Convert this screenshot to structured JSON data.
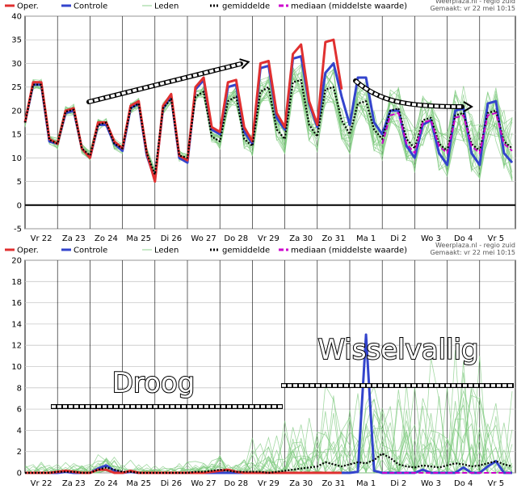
{
  "chart_data": [
    {
      "type": "line",
      "legend": [
        {
          "key": "oper",
          "label": "Oper.",
          "color": "#e03030"
        },
        {
          "key": "controle",
          "label": "Controle",
          "color": "#3344cc"
        },
        {
          "key": "leden",
          "label": "Leden",
          "color": "#8fd08f"
        },
        {
          "key": "gemiddelde",
          "label": "gemiddelde",
          "color": "#000000"
        },
        {
          "key": "mediaan",
          "label": "mediaan (middelste waarde)",
          "color": "#cc00cc"
        }
      ],
      "credit_line1": "Weerplaza.nl - regio zuid",
      "credit_line2": "Gemaakt: vr 22 mei 10:15",
      "ylim": [
        -5,
        40
      ],
      "yticks": [
        -5,
        0,
        5,
        10,
        15,
        20,
        25,
        30,
        35,
        40
      ],
      "xlim": [
        0,
        15.1
      ],
      "x_labels": [
        "Vr 22",
        "Za 23",
        "Zo 24",
        "Ma 25",
        "Di 26",
        "Wo 27",
        "Do 28",
        "Vr 29",
        "Za 30",
        "Zo 31",
        "Ma 1",
        "Di 2",
        "Wo 3",
        "Do 4",
        "Vr 5"
      ],
      "x": [
        0,
        0.25,
        0.5,
        0.75,
        1,
        1.25,
        1.5,
        1.75,
        2,
        2.25,
        2.5,
        2.75,
        3,
        3.25,
        3.5,
        3.75,
        4,
        4.25,
        4.5,
        4.75,
        5,
        5.25,
        5.5,
        5.75,
        6,
        6.25,
        6.5,
        6.75,
        7,
        7.25,
        7.5,
        7.75,
        8,
        8.25,
        8.5,
        8.75,
        9,
        9.25,
        9.5,
        9.75,
        10,
        10.25,
        10.5,
        10.75,
        11,
        11.25,
        11.5,
        11.75,
        12,
        12.25,
        12.5,
        12.75,
        13,
        13.25,
        13.5,
        13.75,
        14,
        14.25,
        14.5,
        14.75,
        15
      ],
      "series": [
        {
          "name": "Oper.",
          "values": [
            17.5,
            26,
            26,
            14,
            13,
            20,
            20.5,
            12,
            10,
            17.5,
            17.5,
            13.5,
            12,
            21,
            22,
            11,
            5,
            21,
            23.5,
            10.5,
            9.5,
            25,
            27,
            16.5,
            15.5,
            26,
            26.5,
            16.5,
            13.5,
            30,
            30.5,
            19.5,
            16.5,
            32,
            34,
            22,
            17,
            34.5,
            35,
            24.5,
            null,
            null,
            null,
            null,
            null,
            null,
            null,
            null,
            null,
            null,
            null,
            null,
            null,
            null,
            null,
            null,
            null,
            null,
            null,
            null,
            null
          ]
        },
        {
          "name": "Controle",
          "values": [
            17.5,
            25.5,
            25.5,
            13.5,
            13,
            19.5,
            20,
            12,
            10,
            17,
            17,
            13,
            11.5,
            20.5,
            21.5,
            10.5,
            5.5,
            20.5,
            23,
            10,
            9,
            24.5,
            26.5,
            16,
            15,
            25,
            25.5,
            15.5,
            13,
            29,
            29.5,
            18.5,
            16,
            31,
            31.5,
            21.5,
            16.5,
            28,
            30,
            23,
            17,
            27,
            27,
            17.5,
            15,
            20,
            20,
            12.5,
            10,
            17,
            18,
            11,
            8.5,
            20,
            20.5,
            11,
            8.5,
            21.5,
            22,
            11,
            9
          ]
        },
        {
          "name": "gemiddelde",
          "values": [
            17.5,
            25.5,
            25.5,
            13.8,
            13,
            19.8,
            20.2,
            12,
            10.5,
            17,
            17.5,
            13,
            12,
            20.5,
            21.5,
            11,
            6.5,
            20.5,
            22.5,
            10.5,
            10,
            23,
            24,
            14.5,
            13.5,
            22,
            23,
            14,
            12.5,
            24,
            25,
            16,
            14,
            26,
            26.5,
            17,
            14.5,
            24.5,
            25,
            18,
            15,
            21.5,
            22,
            16,
            14,
            20,
            20.5,
            14,
            12,
            18,
            18.5,
            13,
            11.5,
            19,
            19.5,
            13,
            11.5,
            19.5,
            20,
            13.5,
            12
          ]
        },
        {
          "name": "mediaan (middelste waarde)",
          "values": [
            null,
            null,
            null,
            null,
            null,
            null,
            null,
            null,
            null,
            null,
            null,
            null,
            null,
            null,
            null,
            null,
            null,
            null,
            null,
            null,
            null,
            null,
            null,
            null,
            null,
            null,
            null,
            null,
            null,
            null,
            null,
            null,
            null,
            null,
            null,
            null,
            null,
            null,
            null,
            null,
            null,
            null,
            null,
            null,
            13,
            19,
            19.5,
            13,
            11,
            17.5,
            18,
            12.5,
            11,
            18.5,
            19,
            12.5,
            11,
            19,
            19.5,
            13,
            11.5
          ]
        }
      ],
      "annotations": []
    },
    {
      "type": "line",
      "legend": [
        {
          "key": "oper",
          "label": "Oper.",
          "color": "#e03030"
        },
        {
          "key": "controle",
          "label": "Controle",
          "color": "#3344cc"
        },
        {
          "key": "leden",
          "label": "Leden",
          "color": "#8fd08f"
        },
        {
          "key": "gemiddelde",
          "label": "gemiddelde",
          "color": "#000000"
        },
        {
          "key": "mediaan",
          "label": "mediaan (middelste waarde)",
          "color": "#cc00cc"
        }
      ],
      "credit_line1": "Weerplaza.nl - regio zuid",
      "credit_line2": "Gemaakt: vr 22 mei 10:15",
      "ylim": [
        0,
        20
      ],
      "yticks": [
        0,
        2,
        4,
        6,
        8,
        10,
        12,
        14,
        16,
        18,
        20
      ],
      "xlim": [
        0,
        15.1
      ],
      "x_labels": [
        "Vr 22",
        "Za 23",
        "Zo 24",
        "Ma 25",
        "Di 26",
        "Wo 27",
        "Do 28",
        "Vr 29",
        "Za 30",
        "Zo 31",
        "Ma 1",
        "Di 2",
        "Wo 3",
        "Do 4",
        "Vr 5"
      ],
      "x": [
        0,
        0.25,
        0.5,
        0.75,
        1,
        1.25,
        1.5,
        1.75,
        2,
        2.25,
        2.5,
        2.75,
        3,
        3.25,
        3.5,
        3.75,
        4,
        4.25,
        4.5,
        4.75,
        5,
        5.25,
        5.5,
        5.75,
        6,
        6.25,
        6.5,
        6.75,
        7,
        7.25,
        7.5,
        7.75,
        8,
        8.25,
        8.5,
        8.75,
        9,
        9.25,
        9.5,
        9.75,
        10,
        10.25,
        10.5,
        10.75,
        11,
        11.25,
        11.5,
        11.75,
        12,
        12.25,
        12.5,
        12.75,
        13,
        13.25,
        13.5,
        13.75,
        14,
        14.25,
        14.5,
        14.75,
        15
      ],
      "series": [
        {
          "name": "Oper.",
          "values": [
            0,
            0,
            0,
            0,
            0.1,
            0.2,
            0.1,
            0,
            0,
            0.3,
            0.3,
            0,
            0,
            0.2,
            0,
            0,
            0,
            0,
            0,
            0,
            0,
            0,
            0,
            0.1,
            0.2,
            0.3,
            0.1,
            0,
            0,
            0,
            0,
            0,
            0,
            0,
            0,
            0,
            0,
            0,
            0,
            0,
            null,
            null,
            null,
            null,
            null,
            null,
            null,
            null,
            null,
            null,
            null,
            null,
            null,
            null,
            null,
            null,
            null,
            null,
            null,
            null,
            null
          ]
        },
        {
          "name": "Controle",
          "values": [
            0,
            0,
            0,
            0,
            0,
            0.1,
            0,
            0,
            0,
            0.4,
            0.7,
            0.2,
            0,
            0.1,
            0,
            0,
            0,
            0,
            0,
            0,
            0,
            0,
            0,
            0,
            0,
            0,
            0,
            0,
            0,
            0,
            0,
            0,
            0,
            0,
            0,
            0,
            0,
            0,
            0,
            0,
            0,
            0.1,
            13,
            0.2,
            0,
            0,
            0,
            0,
            0,
            0.3,
            0,
            0,
            0,
            0,
            0.5,
            0,
            0,
            0.6,
            1.1,
            0,
            0
          ]
        },
        {
          "name": "gemiddelde",
          "values": [
            0,
            0,
            0,
            0,
            0.1,
            0.1,
            0.1,
            0,
            0,
            0.3,
            0.5,
            0.3,
            0.1,
            0.1,
            0,
            0,
            0,
            0,
            0,
            0,
            0,
            0.1,
            0.1,
            0.2,
            0.3,
            0.2,
            0.1,
            0.1,
            0.1,
            0.1,
            0,
            0.1,
            0.2,
            0.3,
            0.4,
            0.5,
            0.6,
            1,
            0.8,
            0.6,
            0.8,
            1,
            0.9,
            1.2,
            1.8,
            1.4,
            0.8,
            0.6,
            0.5,
            0.7,
            0.6,
            0.5,
            0.7,
            0.9,
            0.8,
            0.6,
            0.7,
            0.9,
            1.1,
            0.8,
            0.6
          ]
        },
        {
          "name": "mediaan (middelste waarde)",
          "values": [
            null,
            null,
            null,
            null,
            null,
            null,
            null,
            null,
            null,
            null,
            null,
            null,
            null,
            null,
            null,
            null,
            null,
            null,
            null,
            null,
            null,
            null,
            null,
            null,
            null,
            null,
            null,
            null,
            null,
            null,
            null,
            null,
            null,
            null,
            null,
            null,
            null,
            null,
            null,
            null,
            null,
            null,
            null,
            null,
            0,
            0,
            0,
            0,
            0,
            0,
            0,
            0,
            0,
            0,
            0,
            0,
            0,
            0,
            0,
            0,
            0
          ]
        }
      ],
      "annotations": [
        {
          "text": "Droog"
        },
        {
          "text": "Wisselvallig"
        }
      ]
    }
  ]
}
